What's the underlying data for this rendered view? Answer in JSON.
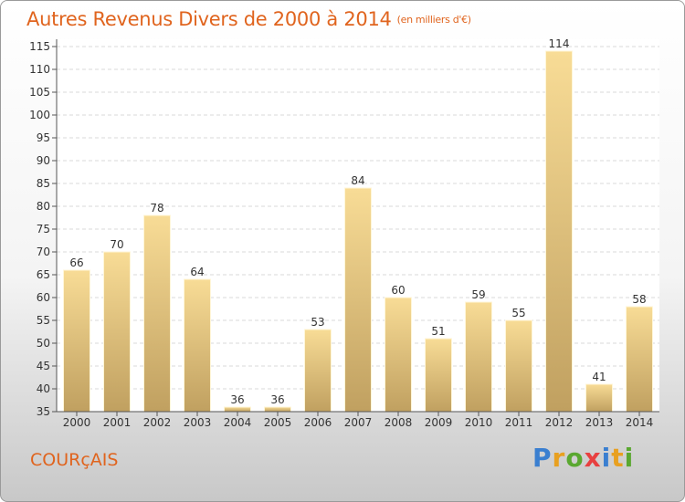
{
  "title": "Autres Revenus Divers de 2000 à 2014",
  "subtitle": "(en milliers d'€)",
  "commune": "COURçAIS",
  "logo": {
    "letters": [
      "P",
      "r",
      "o",
      "x",
      "i",
      "t",
      "i"
    ],
    "colors": [
      "#3a7fd0",
      "#e8a020",
      "#5aa830",
      "#e84040",
      "#3a7fd0",
      "#e8a020",
      "#5aa830"
    ]
  },
  "chart_data": {
    "type": "bar",
    "title": "Autres Revenus Divers de 2000 à 2014",
    "categories": [
      "2000",
      "2001",
      "2002",
      "2003",
      "2004",
      "2005",
      "2006",
      "2007",
      "2008",
      "2009",
      "2010",
      "2011",
      "2012",
      "2013",
      "2014"
    ],
    "values": [
      66,
      70,
      78,
      64,
      36,
      36,
      53,
      84,
      60,
      51,
      59,
      55,
      114,
      41,
      58
    ],
    "data_labels": [
      "66",
      "70",
      "78",
      "64",
      "36",
      "36",
      "53",
      "84",
      "60",
      "51",
      "59",
      "55",
      "114",
      "41",
      "58"
    ],
    "ylim": [
      35,
      115
    ],
    "yticks": [
      "35",
      "40",
      "45",
      "50",
      "55",
      "60",
      "65",
      "70",
      "75",
      "80",
      "85",
      "90",
      "95",
      "100",
      "105",
      "110",
      "115"
    ],
    "grid": true,
    "bar_color_light": "#f8dc96",
    "bar_color_dark": "#c0a060"
  }
}
